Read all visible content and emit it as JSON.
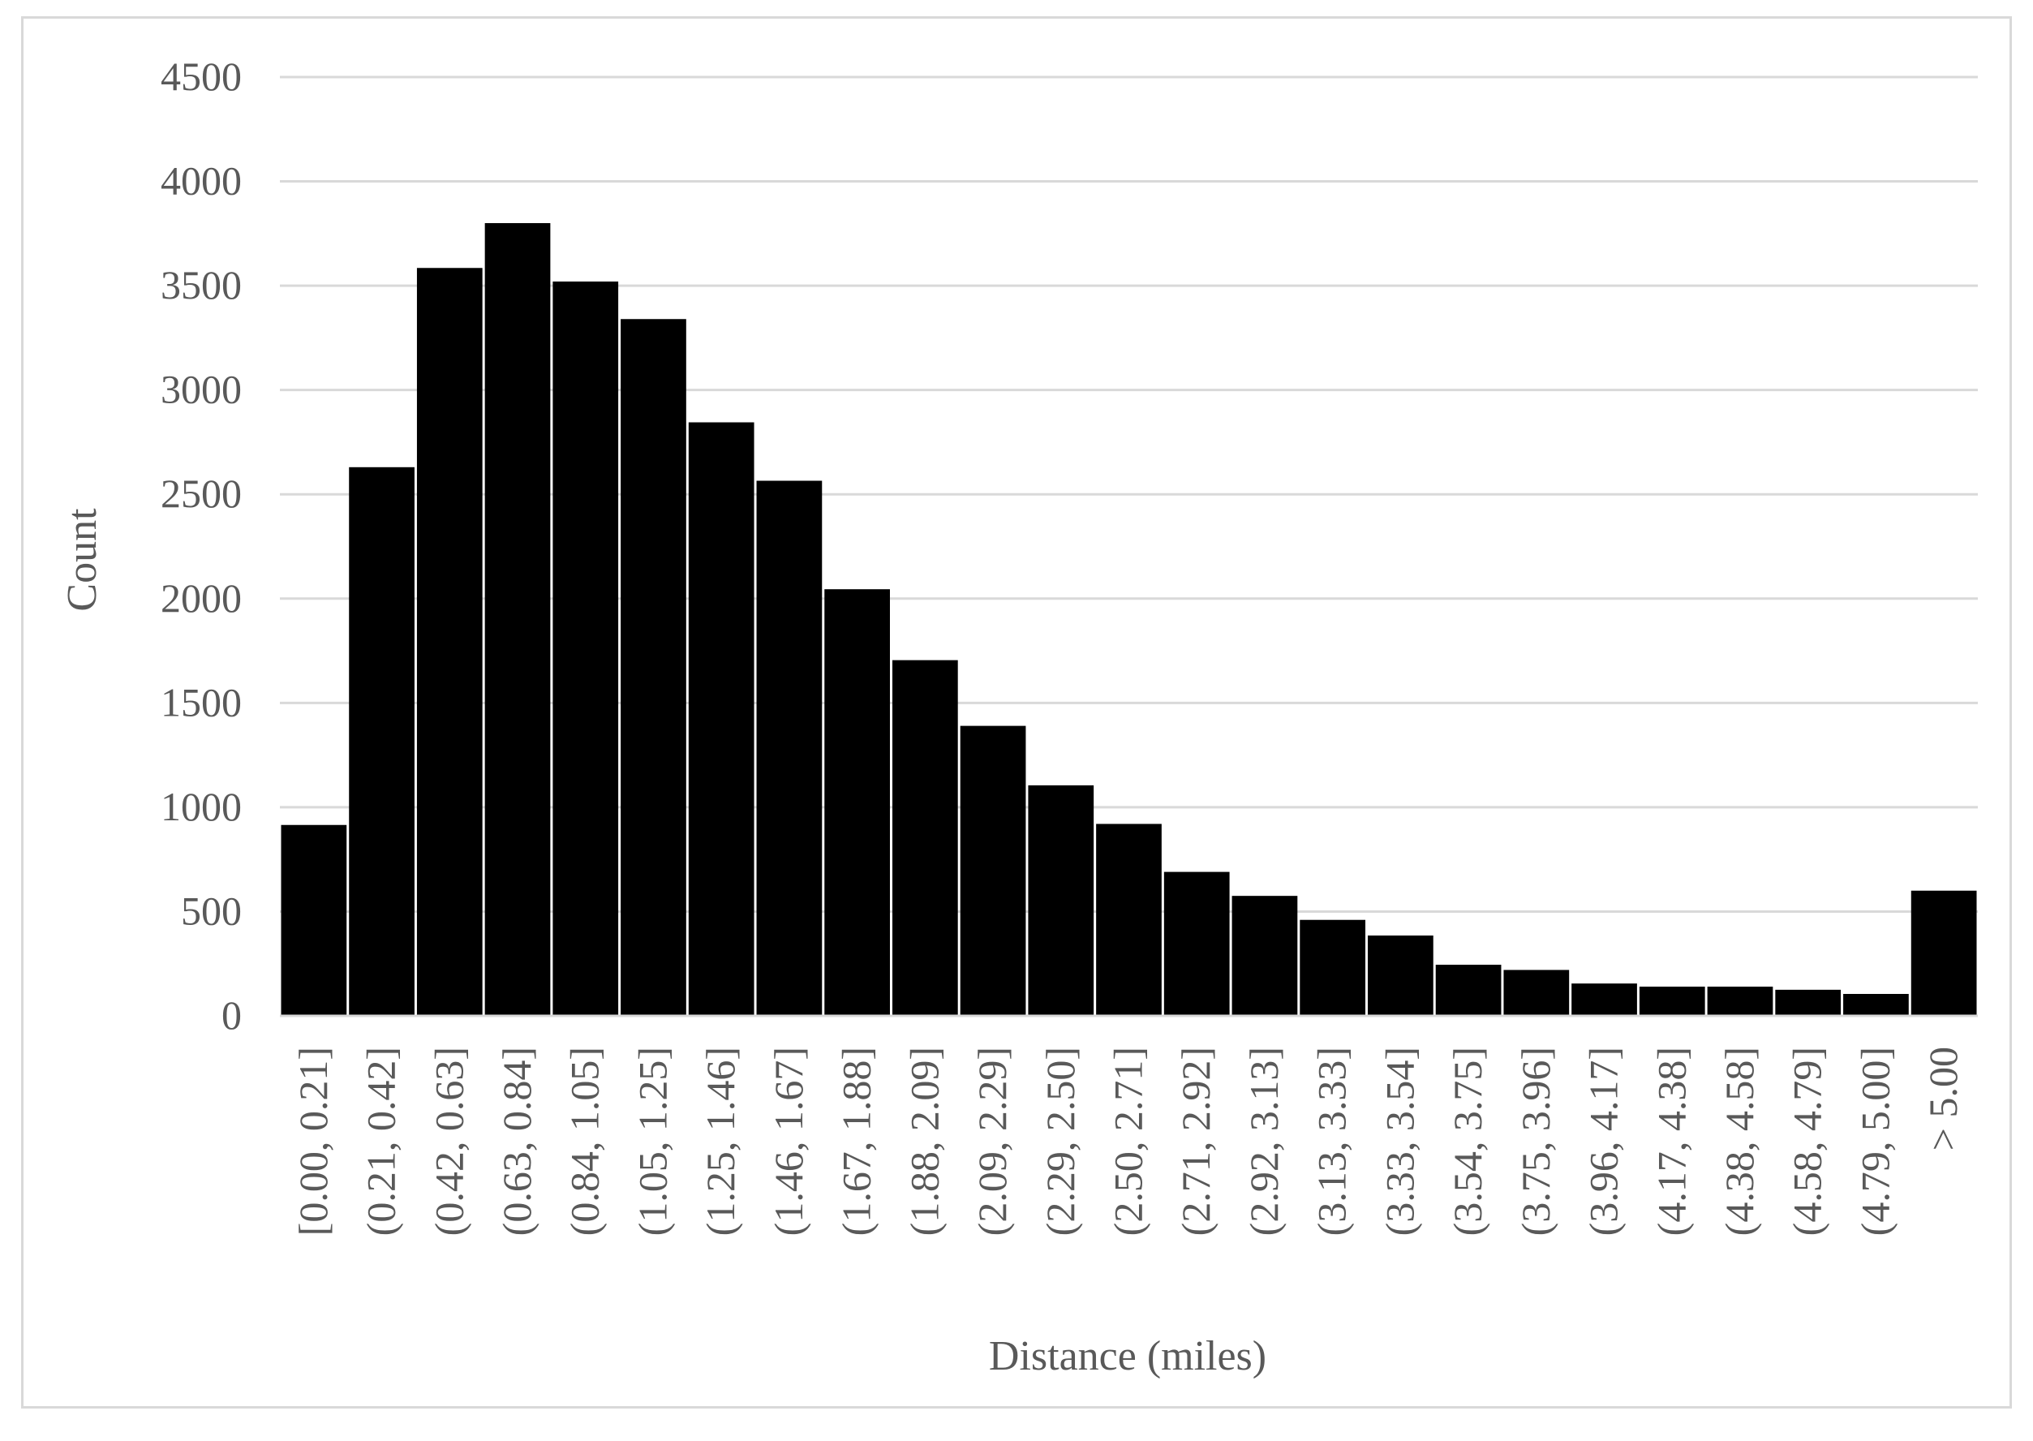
{
  "chart_data": {
    "type": "bar",
    "xlabel": "Distance (miles)",
    "ylabel": "Count",
    "ylim": [
      0,
      4500
    ],
    "yticks": [
      0,
      500,
      1000,
      1500,
      2000,
      2500,
      3000,
      3500,
      4000,
      4500
    ],
    "grid": "horizontal",
    "legend": "none",
    "bar_color": "#000000",
    "grid_color": "#d9d9d9",
    "categories": [
      "[0.00, 0.21]",
      "(0.21, 0.42]",
      "(0.42, 0.63]",
      "(0.63, 0.84]",
      "(0.84, 1.05]",
      "(1.05, 1.25]",
      "(1.25, 1.46]",
      "(1.46, 1.67]",
      "(1.67, 1.88]",
      "(1.88, 2.09]",
      "(2.09, 2.29]",
      "(2.29, 2.50]",
      "(2.50, 2.71]",
      "(2.71, 2.92]",
      "(2.92, 3.13]",
      "(3.13, 3.33]",
      "(3.33, 3.54]",
      "(3.54, 3.75]",
      "(3.75, 3.96]",
      "(3.96, 4.17]",
      "(4.17, 4.38]",
      "(4.38, 4.58]",
      "(4.58, 4.79]",
      "(4.79, 5.00]",
      "> 5.00"
    ],
    "values": [
      915,
      2630,
      3585,
      3800,
      3520,
      3340,
      2845,
      2565,
      2045,
      1705,
      1390,
      1105,
      920,
      690,
      575,
      460,
      385,
      245,
      220,
      155,
      140,
      140,
      125,
      105,
      600
    ]
  }
}
